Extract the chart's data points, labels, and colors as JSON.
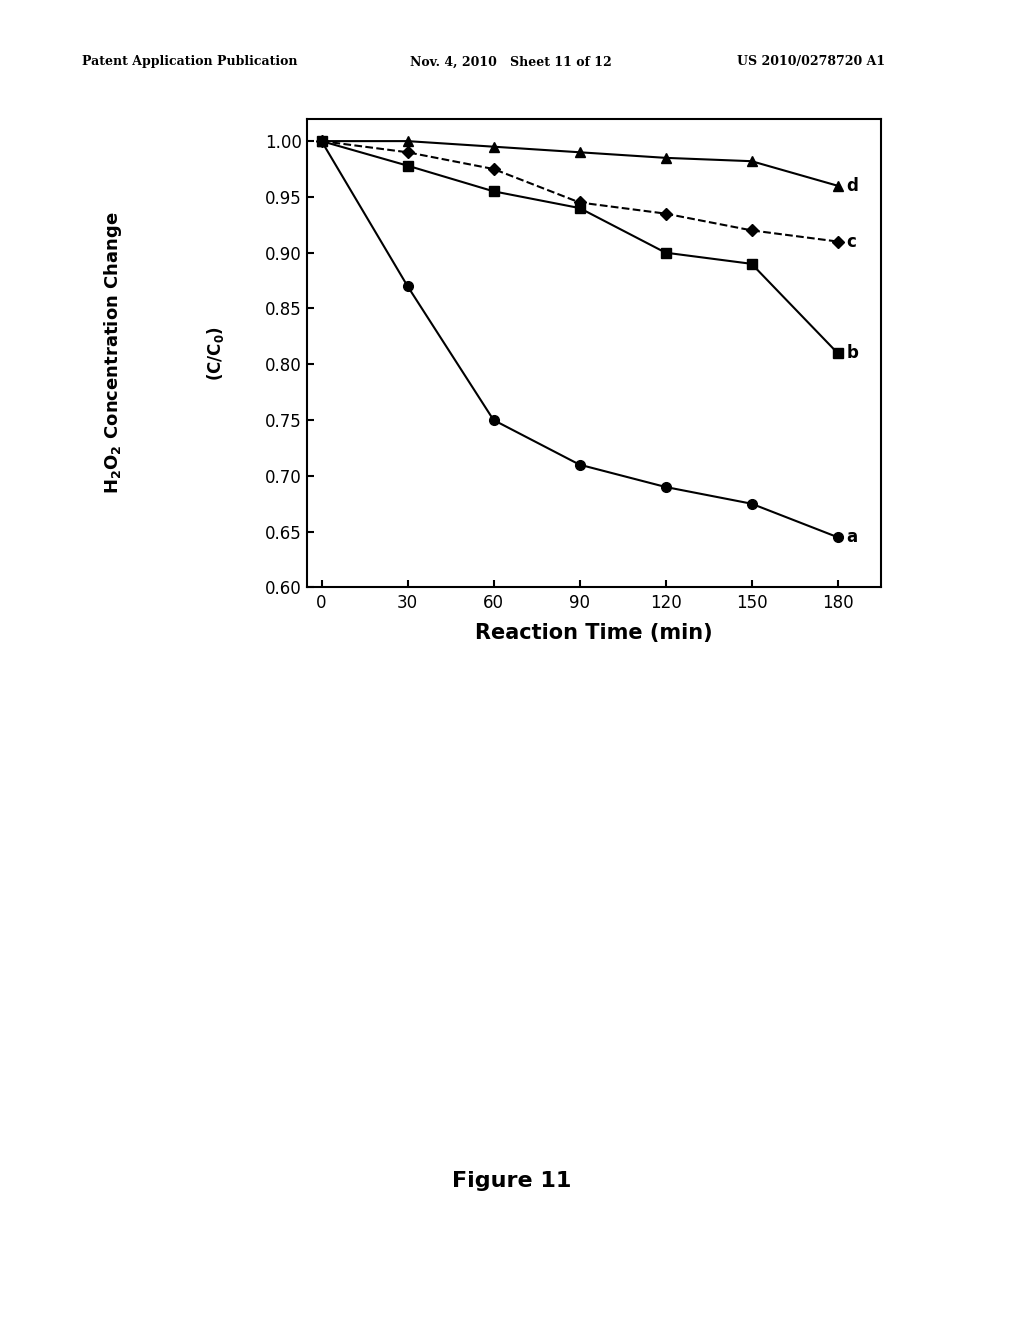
{
  "x": [
    0,
    30,
    60,
    90,
    120,
    150,
    180
  ],
  "series_a": [
    1.0,
    0.87,
    0.75,
    0.71,
    0.69,
    0.675,
    0.645
  ],
  "series_b": [
    1.0,
    0.978,
    0.955,
    0.94,
    0.9,
    0.89,
    0.81
  ],
  "series_c": [
    1.0,
    0.99,
    0.975,
    0.945,
    0.935,
    0.92,
    0.91
  ],
  "series_d": [
    1.0,
    1.0,
    0.995,
    0.99,
    0.985,
    0.982,
    0.96
  ],
  "xlabel": "Reaction Time (min)",
  "ylim": [
    0.6,
    1.02
  ],
  "xlim": [
    -5,
    195
  ],
  "yticks": [
    0.6,
    0.65,
    0.7,
    0.75,
    0.8,
    0.85,
    0.9,
    0.95,
    1.0
  ],
  "xticks": [
    0,
    30,
    60,
    90,
    120,
    150,
    180
  ],
  "color_all": "#000000",
  "line_style_c": "--",
  "line_style_abd": "-",
  "marker_a": "o",
  "marker_b": "s",
  "marker_c": "D",
  "marker_d": "^",
  "marker_size": 7,
  "line_width": 1.5,
  "label_a": "a",
  "label_b": "b",
  "label_c": "c",
  "label_d": "d",
  "figure_caption": "Figure 11",
  "header_left": "Patent Application Publication",
  "header_center": "Nov. 4, 2010   Sheet 11 of 12",
  "header_right": "US 2010/0278720 A1",
  "bg_color": "#ffffff"
}
